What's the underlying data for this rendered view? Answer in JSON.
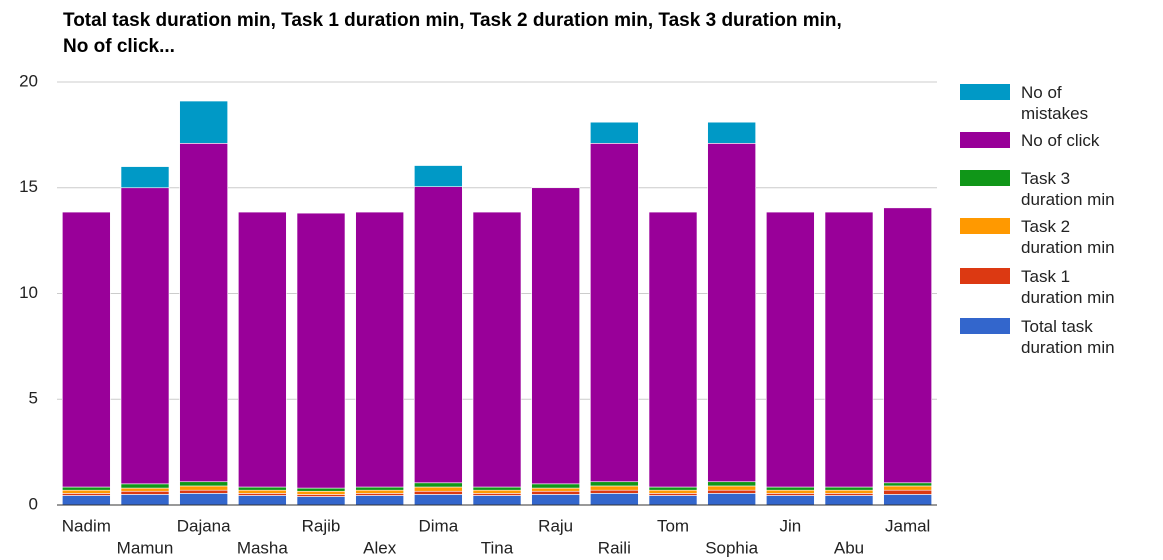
{
  "chart_data": {
    "type": "stacked_bar",
    "title": "Total task duration min, Task 1 duration min, Task 2 duration min, Task 3 duration min, No of click...",
    "categories": [
      "Nadim",
      "Mamun",
      "Dajana",
      "Masha",
      "Rajib",
      "Alex",
      "Dima",
      "Tina",
      "Raju",
      "Raili",
      "Tom",
      "Sophia",
      "Jin",
      "Abu",
      "Jamal"
    ],
    "series": [
      {
        "name": "Total task duration min",
        "color": "#3366cc",
        "values": [
          0.45,
          0.5,
          0.55,
          0.45,
          0.4,
          0.45,
          0.5,
          0.45,
          0.5,
          0.55,
          0.45,
          0.55,
          0.45,
          0.45,
          0.5
        ]
      },
      {
        "name": "Task 1 duration min",
        "color": "#dc3912",
        "values": [
          0.1,
          0.15,
          0.15,
          0.1,
          0.1,
          0.1,
          0.15,
          0.1,
          0.15,
          0.15,
          0.1,
          0.15,
          0.1,
          0.1,
          0.2
        ]
      },
      {
        "name": "Task 2 duration min",
        "color": "#ff9900",
        "values": [
          0.15,
          0.15,
          0.2,
          0.15,
          0.15,
          0.15,
          0.2,
          0.15,
          0.15,
          0.2,
          0.15,
          0.2,
          0.15,
          0.15,
          0.2
        ]
      },
      {
        "name": "Task 3 duration min",
        "color": "#109618",
        "values": [
          0.15,
          0.2,
          0.2,
          0.15,
          0.15,
          0.15,
          0.2,
          0.15,
          0.2,
          0.2,
          0.15,
          0.2,
          0.15,
          0.15,
          0.15
        ]
      },
      {
        "name": "No of click",
        "color": "#990099",
        "values": [
          13,
          14,
          16,
          13,
          13,
          13,
          14,
          13,
          14,
          16,
          13,
          16,
          13,
          13,
          13
        ]
      },
      {
        "name": "No of mistakes",
        "color": "#0099c6",
        "values": [
          0,
          1,
          2,
          0,
          0,
          0,
          1,
          0,
          0,
          1,
          0,
          1,
          0,
          0,
          0
        ]
      }
    ],
    "ylim": [
      0,
      20
    ],
    "yticks": [
      0,
      5,
      10,
      15,
      20
    ],
    "grid": true,
    "legend": "right"
  }
}
